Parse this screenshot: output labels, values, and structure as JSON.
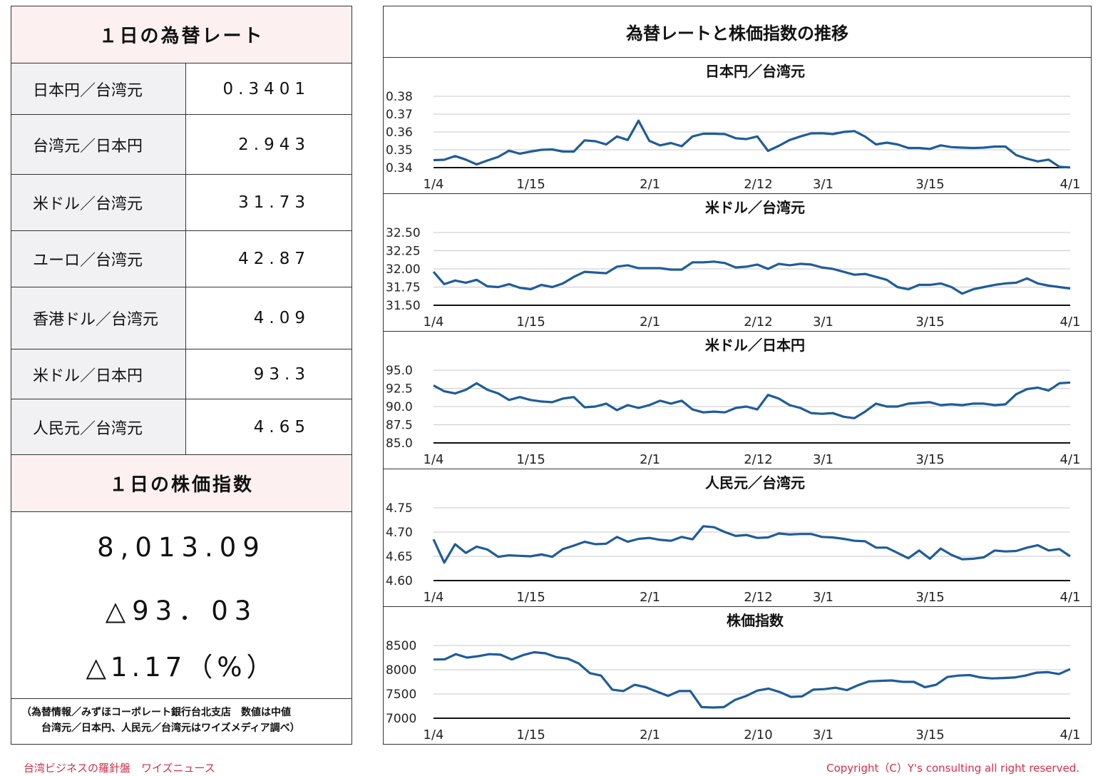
{
  "left": {
    "rates_title": "１日の為替レート",
    "rates": [
      {
        "label": "日本円／台湾元",
        "value": "0.3401"
      },
      {
        "label": "台湾元／日本円",
        "value": "2.943"
      },
      {
        "label": "米ドル／台湾元",
        "value": "31.73"
      },
      {
        "label": "ユーロ／台湾元",
        "value": "42.87"
      },
      {
        "label": "香港ドル／台湾元",
        "value": "4.09"
      },
      {
        "label": "米ドル／日本円",
        "value": "93.3"
      },
      {
        "label": "人民元／台湾元",
        "value": "4.65"
      }
    ],
    "stock_title": "１日の株価指数",
    "stock_index": "8,013.09",
    "stock_change": "△93．03",
    "stock_change_pct": "△1.17（%）",
    "source_line1": "（為替情報／みずほコーポレート銀行台北支店　数値は中値",
    "source_line2": "台湾元／日本円、人民元／台湾元はワイズメディア調べ）"
  },
  "right": {
    "title": "為替レートと株価指数の推移"
  },
  "chart_data": [
    {
      "type": "line",
      "title": "日本円／台湾元",
      "x_ticks": [
        "1/4",
        "1/15",
        "2/1",
        "2/12",
        "3/1",
        "3/15",
        "4/1"
      ],
      "y_ticks": [
        "0.38",
        "0.37",
        "0.36",
        "0.35",
        "0.34"
      ],
      "ylim": [
        0.34,
        0.38
      ],
      "grid": true,
      "color": "#1f5c99",
      "values": [
        0.3442,
        0.3444,
        0.3465,
        0.3445,
        0.3418,
        0.344,
        0.346,
        0.3495,
        0.3478,
        0.349,
        0.35,
        0.3502,
        0.349,
        0.349,
        0.3553,
        0.3548,
        0.353,
        0.3575,
        0.3555,
        0.3663,
        0.355,
        0.3525,
        0.3538,
        0.352,
        0.3575,
        0.359,
        0.359,
        0.3588,
        0.3565,
        0.356,
        0.3575,
        0.3494,
        0.3522,
        0.3555,
        0.3575,
        0.3592,
        0.3593,
        0.3588,
        0.36,
        0.3605,
        0.3574,
        0.353,
        0.354,
        0.353,
        0.351,
        0.351,
        0.3505,
        0.3525,
        0.3515,
        0.3512,
        0.351,
        0.3512,
        0.3518,
        0.3518,
        0.347,
        0.345,
        0.3435,
        0.3445,
        0.3405,
        0.3401
      ]
    },
    {
      "type": "line",
      "title": "米ドル／台湾元",
      "x_ticks": [
        "1/4",
        "1/15",
        "2/1",
        "2/12",
        "3/1",
        "3/15",
        "4/1"
      ],
      "y_ticks": [
        "32.50",
        "32.25",
        "32.00",
        "31.75",
        "31.50"
      ],
      "ylim": [
        31.5,
        32.5
      ],
      "grid": true,
      "color": "#1f5c99",
      "values": [
        31.96,
        31.79,
        31.84,
        31.81,
        31.85,
        31.76,
        31.75,
        31.79,
        31.74,
        31.72,
        31.78,
        31.75,
        31.8,
        31.89,
        31.96,
        31.95,
        31.94,
        32.03,
        32.05,
        32.01,
        32.01,
        32.01,
        31.99,
        31.99,
        32.09,
        32.09,
        32.1,
        32.08,
        32.02,
        32.03,
        32.06,
        32.0,
        32.07,
        32.05,
        32.07,
        32.06,
        32.02,
        32.0,
        31.96,
        31.92,
        31.93,
        31.89,
        31.85,
        31.75,
        31.72,
        31.78,
        31.78,
        31.8,
        31.75,
        31.66,
        31.72,
        31.75,
        31.78,
        31.8,
        31.81,
        31.87,
        31.8,
        31.77,
        31.75,
        31.73
      ]
    },
    {
      "type": "line",
      "title": "米ドル／日本円",
      "x_ticks": [
        "1/4",
        "1/15",
        "2/1",
        "2/12",
        "3/1",
        "3/15",
        "4/1"
      ],
      "y_ticks": [
        "95.0",
        "92.5",
        "90.0",
        "87.5",
        "85.0"
      ],
      "ylim": [
        85.0,
        95.0
      ],
      "grid": true,
      "color": "#1f5c99",
      "values": [
        92.9,
        92.1,
        91.8,
        92.3,
        93.2,
        92.3,
        91.8,
        90.9,
        91.3,
        90.9,
        90.7,
        90.6,
        91.1,
        91.3,
        89.9,
        90.0,
        90.4,
        89.5,
        90.2,
        89.8,
        90.2,
        90.8,
        90.4,
        90.8,
        89.6,
        89.2,
        89.3,
        89.2,
        89.8,
        90.0,
        89.6,
        91.6,
        91.1,
        90.2,
        89.8,
        89.1,
        89.0,
        89.1,
        88.6,
        88.4,
        89.3,
        90.4,
        90.0,
        90.0,
        90.4,
        90.5,
        90.6,
        90.2,
        90.3,
        90.2,
        90.4,
        90.4,
        90.2,
        90.3,
        91.7,
        92.4,
        92.6,
        92.2,
        93.2,
        93.3
      ]
    },
    {
      "type": "line",
      "title": "人民元／台湾元",
      "x_ticks": [
        "1/4",
        "1/15",
        "2/1",
        "2/12",
        "3/1",
        "3/15",
        "4/1"
      ],
      "y_ticks": [
        "4.75",
        "4.70",
        "4.65",
        "4.60"
      ],
      "ylim": [
        4.6,
        4.75
      ],
      "grid": true,
      "color": "#1f5c99",
      "values": [
        4.685,
        4.637,
        4.675,
        4.657,
        4.67,
        4.664,
        4.649,
        4.652,
        4.651,
        4.65,
        4.654,
        4.649,
        4.665,
        4.672,
        4.68,
        4.675,
        4.676,
        4.69,
        4.68,
        4.686,
        4.688,
        4.684,
        4.682,
        4.69,
        4.685,
        4.712,
        4.71,
        4.7,
        4.692,
        4.694,
        4.688,
        4.689,
        4.697,
        4.695,
        4.696,
        4.696,
        4.69,
        4.689,
        4.686,
        4.682,
        4.681,
        4.668,
        4.668,
        4.657,
        4.646,
        4.662,
        4.645,
        4.666,
        4.653,
        4.644,
        4.645,
        4.648,
        4.662,
        4.66,
        4.661,
        4.668,
        4.673,
        4.662,
        4.665,
        4.65
      ]
    },
    {
      "type": "line",
      "title": "株価指数",
      "x_ticks": [
        "1/4",
        "1/15",
        "2/1",
        "2/10",
        "3/1",
        "3/15",
        "4/1"
      ],
      "y_ticks": [
        "8500",
        "8000",
        "7500",
        "7000"
      ],
      "ylim": [
        7000,
        8500
      ],
      "grid": true,
      "color": "#1f5c99",
      "values": [
        8210,
        8215,
        8320,
        8250,
        8280,
        8320,
        8310,
        8210,
        8300,
        8360,
        8340,
        8260,
        8230,
        8130,
        7930,
        7880,
        7590,
        7560,
        7690,
        7640,
        7550,
        7460,
        7560,
        7560,
        7230,
        7220,
        7230,
        7380,
        7460,
        7570,
        7610,
        7540,
        7440,
        7450,
        7590,
        7600,
        7630,
        7580,
        7680,
        7760,
        7770,
        7780,
        7750,
        7750,
        7640,
        7690,
        7850,
        7880,
        7890,
        7840,
        7820,
        7830,
        7840,
        7880,
        7940,
        7950,
        7910,
        8013
      ]
    }
  ],
  "footer": {
    "left": "台湾ビジネスの羅針盤　ワイズニュース",
    "right": "Copyright（C）Y's consulting all right reserved."
  }
}
